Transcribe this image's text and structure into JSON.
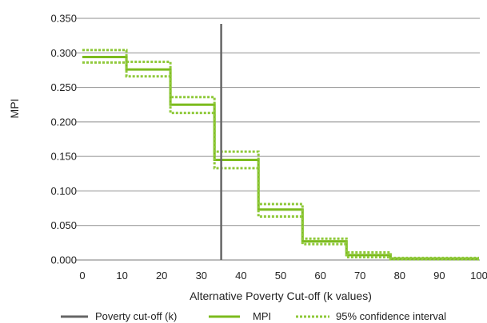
{
  "chart_data": {
    "type": "line",
    "title": "",
    "xlabel": "Alternative Poverty Cut-off (k values)",
    "ylabel": "MPI",
    "xlim": [
      0,
      100
    ],
    "ylim": [
      0,
      0.35
    ],
    "x_ticks": [
      "0",
      "10",
      "20",
      "30",
      "40",
      "50",
      "60",
      "70",
      "80",
      "90",
      "100"
    ],
    "y_ticks": [
      "0.000",
      "0.050",
      "0.100",
      "0.150",
      "0.200",
      "0.250",
      "0.300",
      "0.350"
    ],
    "grid": "horizontal",
    "legend_position": "bottom",
    "poverty_cutoff_k": 35,
    "series": [
      {
        "name": "MPI",
        "style": "solid",
        "color": "#7cbb1e",
        "x": [
          0,
          11.1,
          11.1,
          22.2,
          22.2,
          33.3,
          33.3,
          44.4,
          44.4,
          55.5,
          55.5,
          66.6,
          66.6,
          77.7,
          77.7,
          100
        ],
        "y": [
          0.294,
          0.294,
          0.276,
          0.276,
          0.225,
          0.225,
          0.145,
          0.145,
          0.073,
          0.073,
          0.027,
          0.027,
          0.007,
          0.007,
          0.002,
          0.002
        ]
      },
      {
        "name": "95% confidence interval",
        "style": "dotted",
        "color": "#8fc93a",
        "x": [
          0,
          11.1,
          11.1,
          22.2,
          22.2,
          33.3,
          33.3,
          44.4,
          44.4,
          55.5,
          55.5,
          66.6,
          66.6,
          77.7,
          77.7,
          100
        ],
        "y": [
          0.304,
          0.304,
          0.287,
          0.287,
          0.236,
          0.236,
          0.157,
          0.157,
          0.081,
          0.081,
          0.031,
          0.031,
          0.011,
          0.011,
          0.003,
          0.003
        ]
      },
      {
        "name": "95% confidence interval lower",
        "style": "dotted",
        "color": "#8fc93a",
        "x": [
          0,
          11.1,
          11.1,
          22.2,
          22.2,
          33.3,
          33.3,
          44.4,
          44.4,
          55.5,
          55.5,
          66.6,
          66.6,
          77.7,
          77.7,
          100
        ],
        "y": [
          0.286,
          0.286,
          0.266,
          0.266,
          0.213,
          0.213,
          0.133,
          0.133,
          0.063,
          0.063,
          0.023,
          0.023,
          0.004,
          0.004,
          0.001,
          0.001
        ]
      }
    ],
    "legend": [
      {
        "label": "Poverty cut-off (k)",
        "color": "#666666",
        "style": "solid"
      },
      {
        "label": "MPI",
        "color": "#7cbb1e",
        "style": "solid"
      },
      {
        "label": "95% confidence interval",
        "color": "#8fc93a",
        "style": "dotted"
      }
    ]
  }
}
